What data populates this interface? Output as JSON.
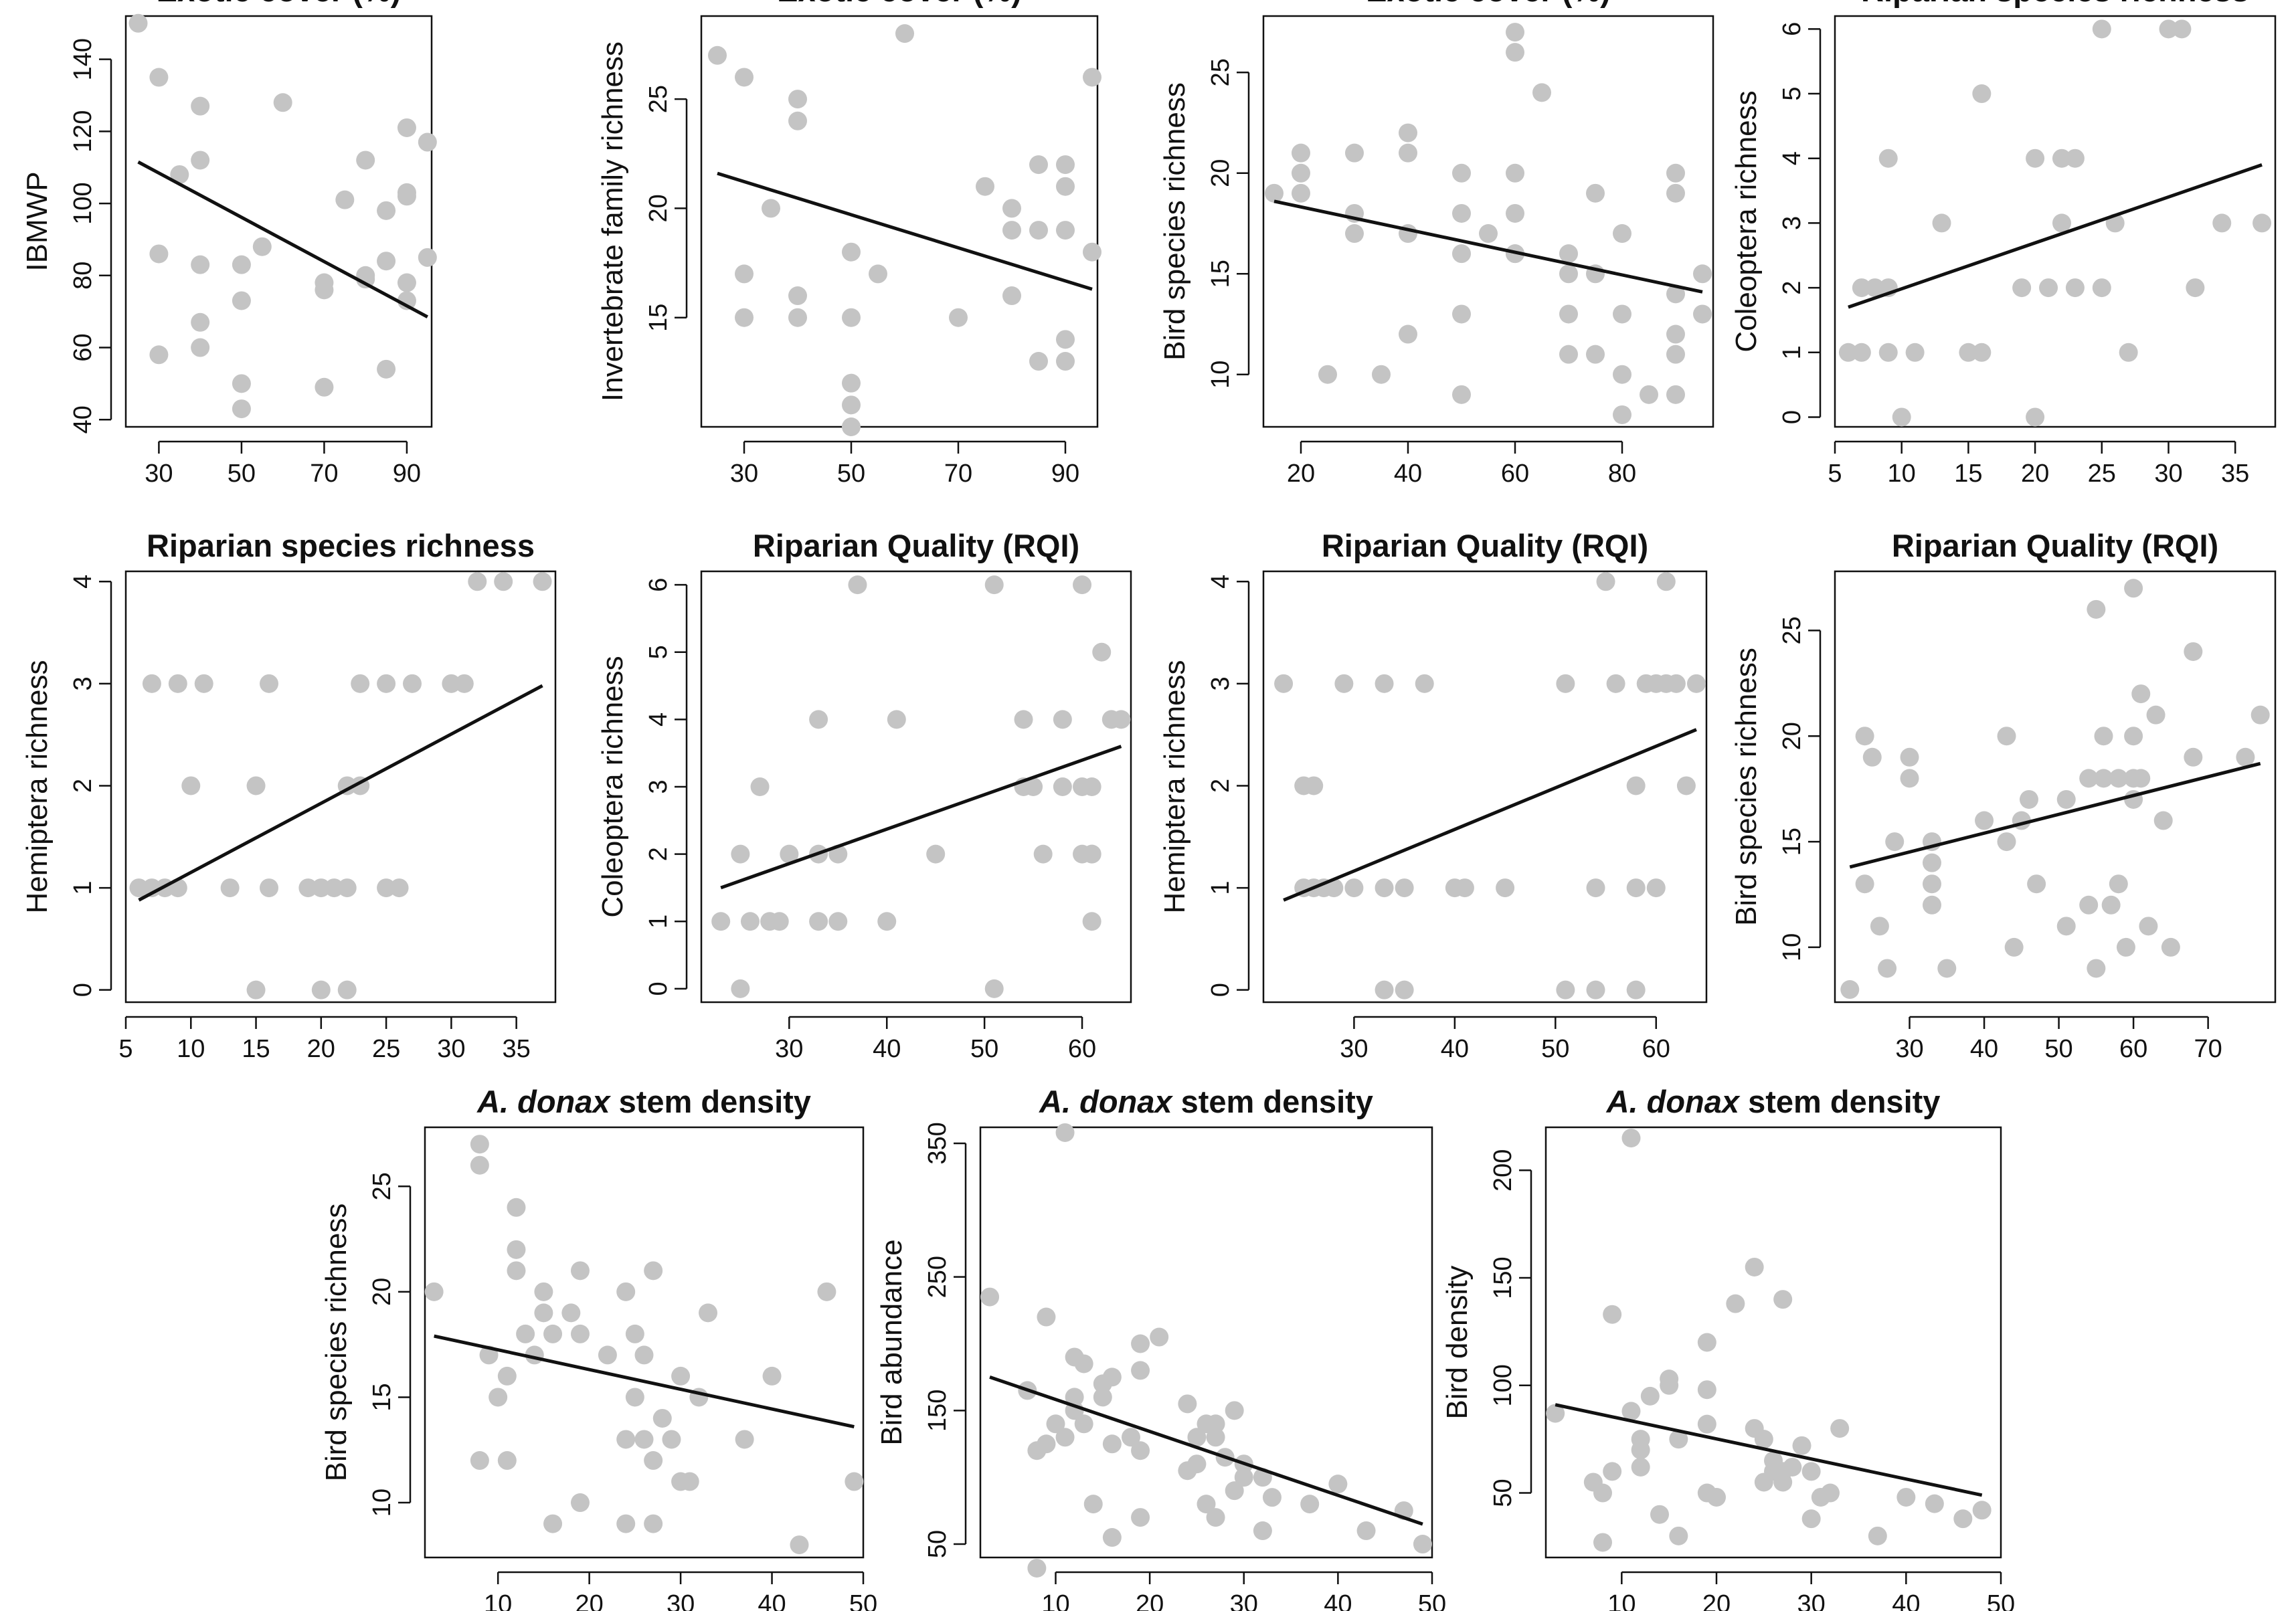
{
  "figure": {
    "colors": {
      "points": "#c4c4c4",
      "line": "#111111",
      "background": "#ffffff"
    }
  },
  "chart_data": [
    {
      "id": "p1",
      "type": "scatter",
      "title": "Exotic cover (%)",
      "xlabel": "",
      "ylabel": "IBMWP",
      "xlim": [
        22,
        96
      ],
      "ylim": [
        38,
        152
      ],
      "xticks": [
        30,
        50,
        70,
        90
      ],
      "yticks": [
        40,
        60,
        80,
        100,
        120,
        140
      ],
      "x": [
        25,
        30,
        30,
        30,
        35,
        40,
        40,
        40,
        40,
        40,
        50,
        50,
        50,
        50,
        55,
        60,
        70,
        70,
        70,
        75,
        80,
        80,
        80,
        85,
        85,
        85,
        90,
        90,
        90,
        90,
        90,
        95,
        95
      ],
      "y": [
        150,
        135,
        86,
        58,
        108,
        127,
        112,
        83,
        67,
        60,
        83,
        73,
        50,
        43,
        88,
        128,
        78,
        76,
        49,
        101,
        112,
        80,
        79,
        98,
        84,
        54,
        121,
        103,
        102,
        78,
        73,
        117,
        85
      ],
      "fit": {
        "x": [
          25,
          95
        ],
        "y": [
          111.5,
          68.5
        ]
      }
    },
    {
      "id": "p2",
      "type": "scatter",
      "title": "Exotic cover (%)",
      "xlabel": "",
      "ylabel": "Invertebrate family richness",
      "xlim": [
        22,
        96
      ],
      "ylim": [
        10,
        28.8
      ],
      "xticks": [
        30,
        50,
        70,
        90
      ],
      "yticks": [
        15,
        20,
        25
      ],
      "x": [
        25,
        30,
        30,
        30,
        35,
        40,
        40,
        40,
        40,
        50,
        50,
        50,
        50,
        50,
        55,
        60,
        70,
        75,
        80,
        80,
        80,
        85,
        85,
        85,
        90,
        90,
        90,
        90,
        90,
        95,
        95
      ],
      "y": [
        27,
        26,
        17,
        15,
        20,
        25,
        24,
        16,
        15,
        18,
        15,
        12,
        11,
        10,
        17,
        28,
        15,
        21,
        20,
        19,
        16,
        22,
        19,
        13,
        22,
        21,
        19,
        14,
        13,
        26,
        18
      ],
      "fit": {
        "x": [
          25,
          95
        ],
        "y": [
          21.6,
          16.3
        ]
      }
    },
    {
      "id": "p3",
      "type": "scatter",
      "title": "Exotic cover (%)",
      "xlabel": "",
      "ylabel": "Bird species richness",
      "xlim": [
        13,
        97
      ],
      "ylim": [
        7.4,
        27.8
      ],
      "xticks": [
        20,
        40,
        60,
        80
      ],
      "yticks": [
        10,
        15,
        20,
        25
      ],
      "x": [
        15,
        20,
        20,
        20,
        25,
        30,
        30,
        30,
        35,
        40,
        40,
        40,
        40,
        50,
        50,
        50,
        50,
        50,
        55,
        60,
        60,
        60,
        60,
        60,
        60,
        65,
        70,
        70,
        70,
        70,
        75,
        75,
        75,
        80,
        80,
        80,
        80,
        85,
        90,
        90,
        90,
        90,
        90,
        90,
        95,
        95
      ],
      "y": [
        19,
        21,
        20,
        19,
        10,
        21,
        18,
        17,
        10,
        22,
        21,
        17,
        12,
        20,
        18,
        16,
        13,
        9,
        17,
        27,
        26,
        20,
        18,
        16,
        16,
        24,
        16,
        15,
        13,
        11,
        19,
        15,
        11,
        17,
        13,
        10,
        8,
        9,
        20,
        19,
        14,
        12,
        11,
        9,
        15,
        13
      ],
      "fit": {
        "x": [
          15,
          95
        ],
        "y": [
          18.6,
          14.1
        ]
      }
    },
    {
      "id": "p4",
      "type": "scatter",
      "title": "Riparian species richness",
      "xlabel": "",
      "ylabel": "Coleoptera richness",
      "xlim": [
        5,
        38
      ],
      "ylim": [
        -0.15,
        6.2
      ],
      "xticks": [
        5,
        10,
        15,
        20,
        25,
        30,
        35
      ],
      "yticks": [
        0,
        1,
        2,
        3,
        4,
        5,
        6
      ],
      "x": [
        6,
        7,
        7,
        8,
        9,
        9,
        9,
        10,
        11,
        13,
        15,
        16,
        16,
        19,
        20,
        20,
        21,
        22,
        22,
        23,
        23,
        25,
        25,
        26,
        27,
        30,
        31,
        32,
        34,
        37
      ],
      "y": [
        1,
        2,
        1,
        2,
        4,
        2,
        1,
        0,
        1,
        3,
        1,
        5,
        1,
        2,
        4,
        0,
        2,
        4,
        3,
        4,
        2,
        6,
        2,
        3,
        1,
        6,
        6,
        2,
        3,
        3
      ],
      "fit": {
        "x": [
          6,
          37
        ],
        "y": [
          1.7,
          3.9
        ]
      }
    },
    {
      "id": "p5",
      "type": "scatter",
      "title": "Riparian species richness",
      "xlabel": "",
      "ylabel": "Hemiptera richness",
      "xlim": [
        5,
        38
      ],
      "ylim": [
        -0.12,
        4.1
      ],
      "xticks": [
        5,
        10,
        15,
        20,
        25,
        30,
        35
      ],
      "yticks": [
        0,
        1,
        2,
        3,
        4
      ],
      "x": [
        6,
        7,
        7,
        8,
        9,
        9,
        10,
        11,
        13,
        15,
        15,
        16,
        16,
        19,
        20,
        20,
        21,
        22,
        22,
        22,
        23,
        23,
        25,
        25,
        26,
        27,
        30,
        31,
        32,
        34,
        37
      ],
      "y": [
        1,
        1,
        3,
        1,
        3,
        1,
        2,
        3,
        1,
        2,
        0,
        3,
        1,
        1,
        1,
        0,
        1,
        2,
        1,
        0,
        3,
        2,
        3,
        1,
        1,
        3,
        3,
        3,
        4,
        4,
        4
      ],
      "fit": {
        "x": [
          6,
          37
        ],
        "y": [
          0.88,
          2.98
        ]
      }
    },
    {
      "id": "p6",
      "type": "scatter",
      "title": "Riparian Quality (RQI)",
      "xlabel": "",
      "ylabel": "Coleoptera richness",
      "xlim": [
        21,
        65
      ],
      "ylim": [
        -0.2,
        6.2
      ],
      "xticks": [
        30,
        40,
        50,
        60
      ],
      "yticks": [
        0,
        1,
        2,
        3,
        4,
        5,
        6
      ],
      "x": [
        23,
        25,
        25,
        26,
        27,
        28,
        29,
        30,
        33,
        33,
        33,
        35,
        35,
        37,
        40,
        41,
        45,
        51,
        51,
        54,
        54,
        55,
        56,
        58,
        58,
        60,
        60,
        60,
        61,
        61,
        61,
        61,
        62,
        63,
        64
      ],
      "y": [
        1,
        2,
        0,
        1,
        3,
        1,
        1,
        2,
        4,
        2,
        1,
        2,
        1,
        6,
        1,
        4,
        2,
        6,
        0,
        4,
        3,
        3,
        2,
        4,
        3,
        6,
        3,
        2,
        3,
        2,
        1,
        2,
        5,
        4,
        4
      ],
      "fit": {
        "x": [
          23,
          64
        ],
        "y": [
          1.5,
          3.6
        ]
      }
    },
    {
      "id": "p7",
      "type": "scatter",
      "title": "Riparian Quality (RQI)",
      "xlabel": "",
      "ylabel": "Hemiptera richness",
      "xlim": [
        21,
        65
      ],
      "ylim": [
        -0.12,
        4.1
      ],
      "xticks": [
        30,
        40,
        50,
        60
      ],
      "yticks": [
        0,
        1,
        2,
        3,
        4
      ],
      "x": [
        23,
        25,
        25,
        26,
        26,
        27,
        28,
        29,
        30,
        33,
        33,
        33,
        35,
        35,
        37,
        40,
        41,
        45,
        51,
        51,
        54,
        54,
        55,
        56,
        58,
        58,
        58,
        59,
        60,
        60,
        61,
        61,
        62,
        63,
        64
      ],
      "y": [
        3,
        1,
        2,
        2,
        1,
        1,
        1,
        3,
        1,
        3,
        1,
        0,
        1,
        0,
        3,
        1,
        1,
        1,
        3,
        0,
        1,
        0,
        4,
        3,
        2,
        1,
        0,
        3,
        1,
        3,
        4,
        3,
        3,
        2,
        3
      ],
      "fit": {
        "x": [
          23,
          64
        ],
        "y": [
          0.88,
          2.55
        ]
      }
    },
    {
      "id": "p8",
      "type": "scatter",
      "title": "Riparian Quality (RQI)",
      "xlabel": "",
      "ylabel": "Bird species richness",
      "xlim": [
        20,
        79
      ],
      "ylim": [
        7.4,
        27.8
      ],
      "xticks": [
        30,
        40,
        50,
        60,
        70
      ],
      "yticks": [
        10,
        15,
        20,
        25
      ],
      "x": [
        22,
        24,
        24,
        25,
        26,
        27,
        28,
        30,
        30,
        33,
        33,
        33,
        33,
        35,
        40,
        43,
        43,
        44,
        45,
        46,
        47,
        51,
        51,
        54,
        54,
        55,
        55,
        56,
        56,
        57,
        58,
        58,
        59,
        60,
        60,
        60,
        60,
        61,
        61,
        62,
        63,
        64,
        65,
        68,
        68,
        75,
        77
      ],
      "y": [
        8,
        20,
        13,
        19,
        11,
        9,
        15,
        19,
        18,
        15,
        14,
        13,
        12,
        9,
        16,
        20,
        15,
        10,
        16,
        17,
        13,
        17,
        11,
        18,
        12,
        9,
        26,
        20,
        18,
        12,
        18,
        13,
        10,
        27,
        20,
        18,
        17,
        22,
        18,
        11,
        21,
        16,
        10,
        24,
        19,
        19,
        21
      ],
      "fit": {
        "x": [
          22,
          77
        ],
        "y": [
          13.8,
          18.7
        ]
      }
    },
    {
      "id": "p9",
      "type": "scatter",
      "title": "A. donax stem density",
      "title_italic": "A. donax",
      "title_rest": " stem density",
      "xlabel": "",
      "ylabel": "Bird species richness",
      "xlim": [
        2,
        50
      ],
      "ylim": [
        7.4,
        27.8
      ],
      "xticks": [
        10,
        20,
        30,
        40,
        50
      ],
      "yticks": [
        10,
        15,
        20,
        25
      ],
      "x": [
        3,
        8,
        8,
        8,
        9,
        10,
        11,
        11,
        12,
        12,
        12,
        13,
        14,
        15,
        15,
        16,
        16,
        18,
        19,
        19,
        19,
        22,
        24,
        24,
        24,
        25,
        25,
        26,
        26,
        27,
        27,
        27,
        28,
        29,
        30,
        30,
        31,
        32,
        33,
        37,
        40,
        43,
        46,
        49
      ],
      "y": [
        20,
        27,
        26,
        12,
        17,
        15,
        16,
        12,
        24,
        22,
        21,
        18,
        17,
        19,
        20,
        18,
        9,
        19,
        18,
        21,
        10,
        17,
        20,
        13,
        9,
        15,
        18,
        17,
        13,
        12,
        21,
        9,
        14,
        13,
        16,
        11,
        11,
        15,
        19,
        13,
        16,
        8,
        20,
        11
      ],
      "fit": {
        "x": [
          3,
          49
        ],
        "y": [
          17.9,
          13.6
        ]
      }
    },
    {
      "id": "p10",
      "type": "scatter",
      "title": "A. donax stem density",
      "title_italic": "A. donax",
      "title_rest": " stem density",
      "xlabel": "",
      "ylabel": "Bird abundance",
      "xlim": [
        2,
        50
      ],
      "ylim": [
        40,
        362
      ],
      "xticks": [
        10,
        20,
        30,
        40,
        50
      ],
      "yticks": [
        50,
        150,
        250,
        350
      ],
      "x": [
        3,
        7,
        8,
        8,
        9,
        9,
        10,
        11,
        11,
        12,
        12,
        12,
        13,
        13,
        14,
        15,
        15,
        16,
        16,
        16,
        18,
        19,
        19,
        19,
        19,
        21,
        24,
        24,
        25,
        25,
        26,
        26,
        27,
        27,
        27,
        28,
        29,
        29,
        30,
        30,
        32,
        32,
        33,
        37,
        40,
        43,
        47,
        49
      ],
      "y": [
        235,
        165,
        120,
        32,
        125,
        220,
        140,
        358,
        130,
        190,
        160,
        150,
        185,
        140,
        80,
        170,
        160,
        125,
        55,
        175,
        130,
        200,
        180,
        120,
        70,
        205,
        155,
        105,
        130,
        110,
        140,
        80,
        140,
        130,
        70,
        115,
        90,
        150,
        110,
        100,
        100,
        60,
        85,
        80,
        95,
        60,
        75,
        50
      ],
      "fit": {
        "x": [
          3,
          49
        ],
        "y": [
          175,
          65
        ]
      }
    },
    {
      "id": "p11",
      "type": "scatter",
      "title": "A. donax stem density",
      "title_italic": "A. donax",
      "title_rest": " stem density",
      "xlabel": "",
      "ylabel": "Bird density",
      "xlim": [
        2,
        50
      ],
      "ylim": [
        20,
        220
      ],
      "xticks": [
        10,
        20,
        30,
        40,
        50
      ],
      "yticks": [
        50,
        100,
        150,
        200
      ],
      "x": [
        3,
        7,
        8,
        8,
        9,
        9,
        11,
        11,
        12,
        12,
        12,
        13,
        14,
        15,
        15,
        16,
        16,
        19,
        19,
        19,
        19,
        20,
        22,
        24,
        24,
        25,
        25,
        26,
        26,
        27,
        27,
        27,
        28,
        29,
        30,
        30,
        31,
        32,
        33,
        37,
        40,
        43,
        46,
        48
      ],
      "y": [
        87,
        55,
        27,
        50,
        133,
        60,
        215,
        88,
        75,
        70,
        62,
        95,
        40,
        103,
        100,
        75,
        30,
        120,
        98,
        82,
        50,
        48,
        138,
        155,
        80,
        75,
        55,
        60,
        65,
        140,
        55,
        60,
        62,
        72,
        60,
        38,
        48,
        50,
        80,
        30,
        48,
        45,
        38,
        42
      ],
      "fit": {
        "x": [
          3,
          48
        ],
        "y": [
          91,
          49
        ]
      }
    }
  ]
}
